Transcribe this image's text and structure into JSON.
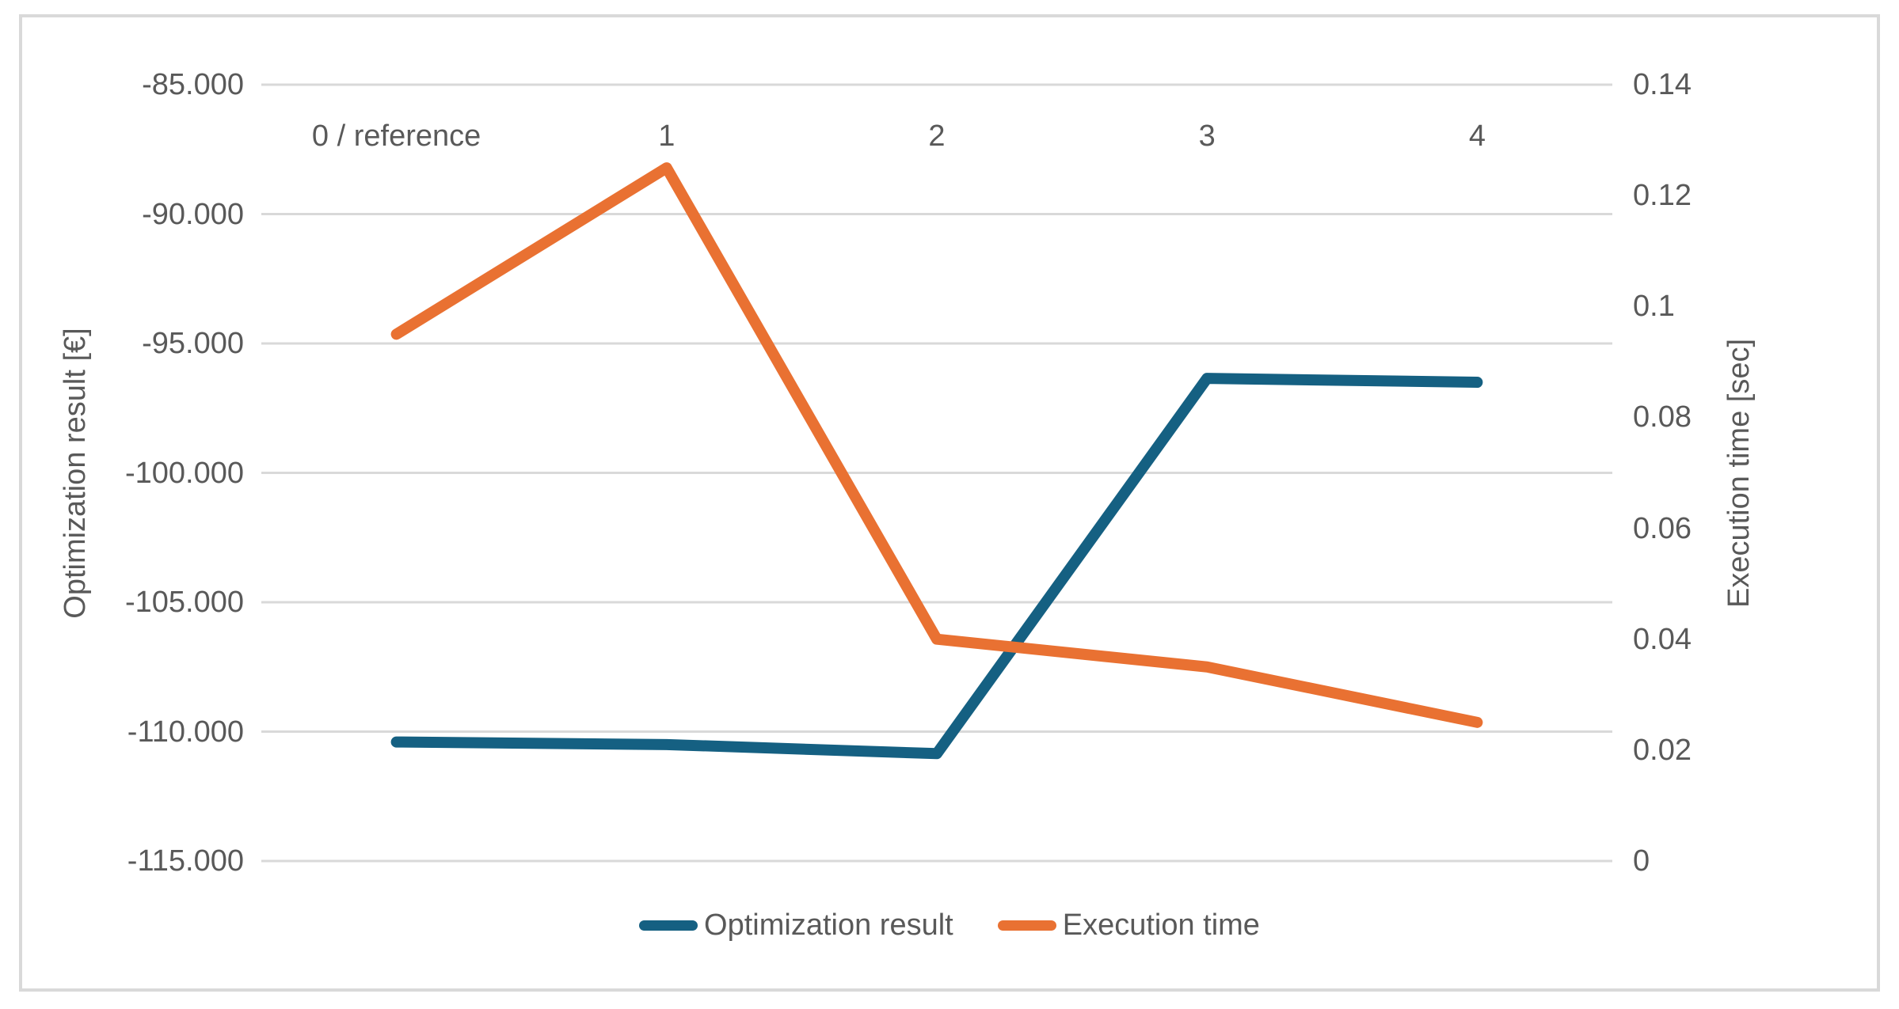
{
  "chart_data": {
    "type": "line",
    "categories": [
      "0 / reference",
      "1",
      "2",
      "3",
      "4"
    ],
    "series": [
      {
        "name": "Optimization result",
        "yaxis": "left",
        "color": "#156082",
        "values": [
          -110400,
          -110500,
          -110850,
          -96350,
          -96500
        ]
      },
      {
        "name": "Execution time",
        "yaxis": "right",
        "color": "#E97132",
        "values": [
          0.095,
          0.125,
          0.04,
          0.035,
          0.025
        ]
      }
    ],
    "axes": {
      "left": {
        "title": "Optimization result [€]",
        "min": -115000,
        "max": -85000,
        "step": 5000,
        "tick_labels": [
          "-85.000",
          "-90.000",
          "-95.000",
          "-100.000",
          "-105.000",
          "-110.000",
          "-115.000"
        ]
      },
      "right": {
        "title": "Execution time [sec]",
        "min": 0,
        "max": 0.14,
        "step": 0.02,
        "tick_labels": [
          "0.14",
          "0.12",
          "0.1",
          "0.08",
          "0.06",
          "0.04",
          "0.02",
          "0"
        ]
      }
    },
    "grid": true,
    "legend_position": "bottom",
    "category_labels_position": "top",
    "colors": {
      "text": "#595959",
      "gridline": "#D9D9D9",
      "frame_border": "#D9D9D9",
      "background": "#FFFFFF"
    }
  }
}
